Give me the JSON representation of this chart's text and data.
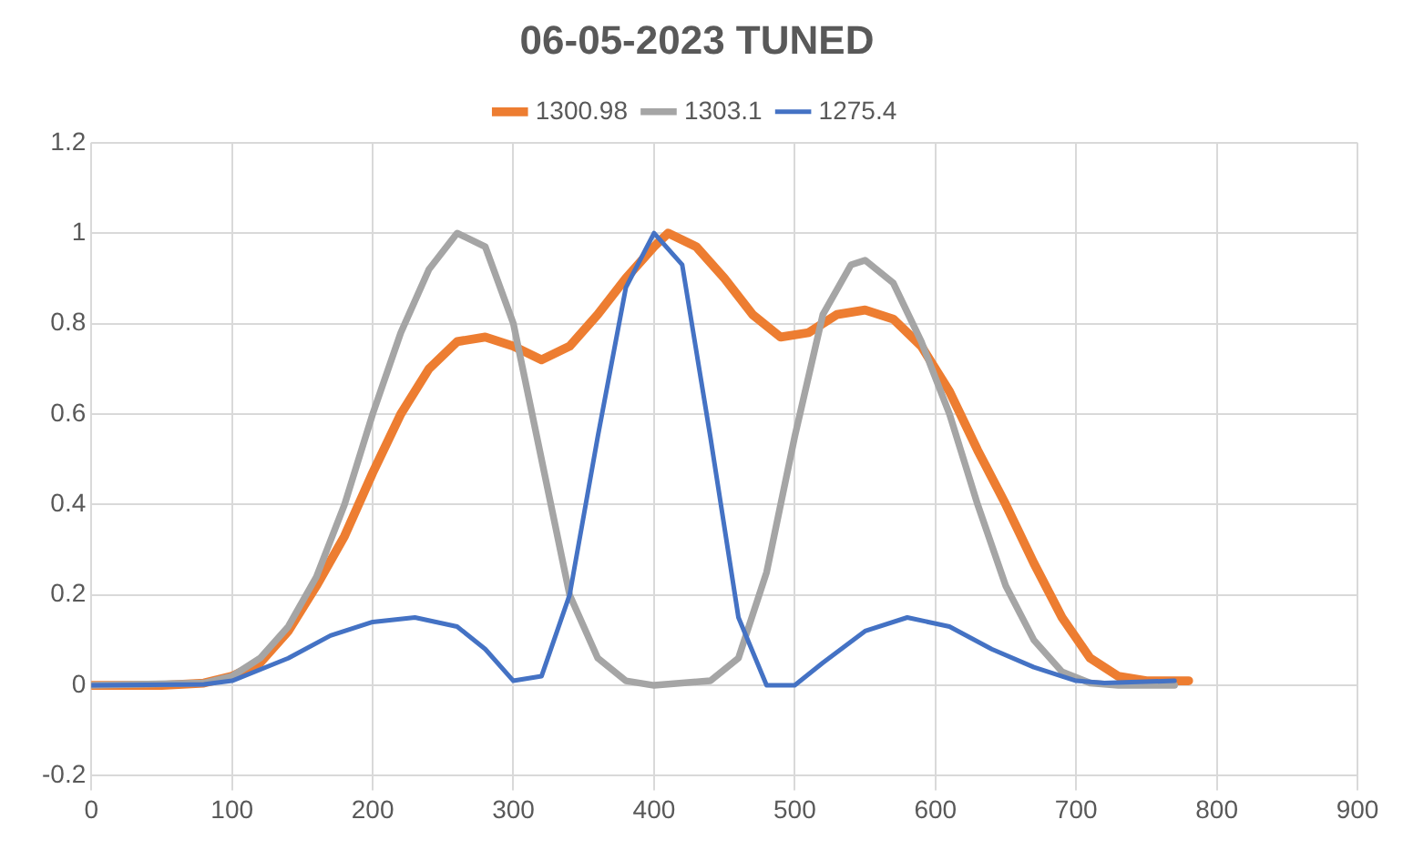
{
  "chart_data": {
    "type": "line",
    "title": "06-05-2023 TUNED",
    "xlim": [
      0,
      900
    ],
    "xticks": [
      0,
      100,
      200,
      300,
      400,
      500,
      600,
      700,
      800,
      900
    ],
    "ylim": [
      -0.2,
      1.2
    ],
    "yticks": [
      -0.2,
      0,
      0.2,
      0.4,
      0.6,
      0.8,
      1,
      1.2
    ],
    "grid": true,
    "legend": "top",
    "marker": "none",
    "line_style": "solid",
    "series": [
      {
        "name": "1300.98",
        "color": "#ed7d31",
        "x": [
          0,
          50,
          80,
          100,
          120,
          140,
          160,
          180,
          200,
          220,
          240,
          260,
          280,
          300,
          320,
          340,
          360,
          380,
          400,
          410,
          430,
          450,
          470,
          490,
          510,
          530,
          550,
          570,
          590,
          610,
          630,
          650,
          670,
          690,
          710,
          730,
          750,
          780
        ],
        "values": [
          0,
          0,
          0.005,
          0.02,
          0.05,
          0.12,
          0.22,
          0.33,
          0.47,
          0.6,
          0.7,
          0.76,
          0.77,
          0.75,
          0.72,
          0.75,
          0.82,
          0.9,
          0.97,
          1.0,
          0.97,
          0.9,
          0.82,
          0.77,
          0.78,
          0.82,
          0.83,
          0.81,
          0.75,
          0.65,
          0.52,
          0.4,
          0.27,
          0.15,
          0.06,
          0.02,
          0.01,
          0.01
        ]
      },
      {
        "name": "1303.1",
        "color": "#a5a5a5",
        "x": [
          0,
          80,
          100,
          120,
          140,
          160,
          180,
          200,
          220,
          240,
          260,
          280,
          300,
          320,
          340,
          360,
          380,
          400,
          440,
          460,
          480,
          500,
          520,
          540,
          550,
          570,
          590,
          610,
          630,
          650,
          670,
          690,
          710,
          730,
          770
        ],
        "values": [
          0,
          0.005,
          0.02,
          0.06,
          0.13,
          0.24,
          0.4,
          0.6,
          0.78,
          0.92,
          1.0,
          0.97,
          0.8,
          0.5,
          0.2,
          0.06,
          0.01,
          0,
          0.01,
          0.06,
          0.25,
          0.55,
          0.82,
          0.93,
          0.94,
          0.89,
          0.76,
          0.6,
          0.4,
          0.22,
          0.1,
          0.03,
          0.005,
          0,
          0
        ]
      },
      {
        "name": "1275.4",
        "color": "#4472c4",
        "x": [
          0,
          80,
          100,
          140,
          170,
          200,
          230,
          260,
          280,
          300,
          320,
          340,
          360,
          380,
          400,
          420,
          440,
          460,
          480,
          500,
          520,
          550,
          580,
          610,
          640,
          670,
          700,
          720,
          770
        ],
        "values": [
          0,
          0.002,
          0.01,
          0.06,
          0.11,
          0.14,
          0.15,
          0.13,
          0.08,
          0.01,
          0.02,
          0.2,
          0.55,
          0.88,
          1.0,
          0.93,
          0.55,
          0.15,
          0,
          0,
          0.05,
          0.12,
          0.15,
          0.13,
          0.08,
          0.04,
          0.01,
          0.005,
          0.01
        ]
      }
    ]
  }
}
